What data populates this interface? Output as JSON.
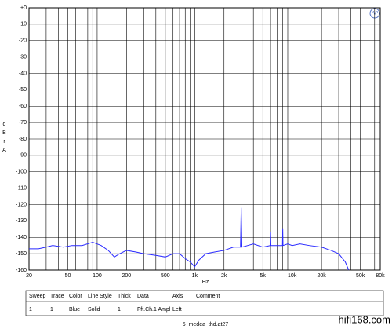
{
  "chart_data": {
    "type": "line",
    "log_x": true,
    "grid": true,
    "ylabel": "dBrA",
    "xlabel": "Hz",
    "logo": "AP",
    "xlim": [
      20,
      80000
    ],
    "ylim": [
      -160,
      0
    ],
    "xticks": [
      20,
      50,
      100,
      200,
      500,
      {
        "value": 1000,
        "label": "1k"
      },
      {
        "value": 2000,
        "label": "2k"
      },
      {
        "value": 5000,
        "label": "5k"
      },
      {
        "value": 10000,
        "label": "10k"
      },
      {
        "value": 20000,
        "label": "20k"
      },
      {
        "value": 50000,
        "label": "50k"
      },
      {
        "value": 80000,
        "label": "80k"
      }
    ],
    "x_minor_grid": [
      30,
      40,
      60,
      70,
      80,
      90,
      300,
      400,
      600,
      700,
      800,
      900,
      3000,
      4000,
      6000,
      7000,
      8000,
      9000,
      30000,
      40000,
      60000,
      70000
    ],
    "yticks": [
      {
        "value": 0,
        "label": "+0"
      },
      -10,
      -20,
      -30,
      -40,
      -50,
      -60,
      -70,
      -80,
      -90,
      -100,
      -110,
      -120,
      -130,
      -140,
      -150,
      -160
    ],
    "series": [
      {
        "name": "Fft.Ch.1 Ampl",
        "color": "#2a2aff",
        "x": [
          20,
          25,
          30,
          35,
          45,
          55,
          70,
          90,
          110,
          130,
          150,
          170,
          200,
          250,
          300,
          400,
          500,
          600,
          700,
          800,
          900,
          1000,
          1100,
          1300,
          1600,
          2000,
          2500,
          2950,
          3000,
          3050,
          3500,
          4000,
          5000,
          5950,
          6000,
          6050,
          7000,
          7950,
          8000,
          8050,
          9000,
          10000,
          12000,
          15000,
          20000,
          25000,
          30000,
          35000,
          38000
        ],
        "values": [
          -147,
          -147,
          -146,
          -145,
          -146,
          -145,
          -145,
          -143,
          -145,
          -148,
          -152,
          -150,
          -148,
          -149,
          -150,
          -151,
          -152,
          -150,
          -150,
          -153,
          -155,
          -158,
          -154,
          -150,
          -149,
          -148,
          -146,
          -146,
          -122,
          -146,
          -145,
          -144,
          -146,
          -145,
          -137,
          -145,
          -145,
          -145,
          -135,
          -145,
          -144,
          -145,
          -144,
          -145,
          -146,
          -148,
          -150,
          -155,
          -160
        ]
      }
    ],
    "legend_table": {
      "headers": [
        "Sweep",
        "Trace",
        "Color",
        "Line Style",
        "Thick",
        "Data",
        "Axis",
        "Comment"
      ],
      "row": [
        "1",
        "1",
        "Blue",
        "Solid",
        "1",
        "Fft.Ch.1 Ampl",
        "Left"
      ]
    },
    "filename": "5_medea_thd.at27",
    "watermark": "hifi168.com"
  }
}
